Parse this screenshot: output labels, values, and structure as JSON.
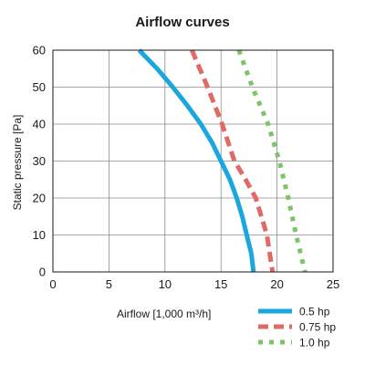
{
  "chart_data": {
    "type": "line",
    "title": "Airflow curves",
    "xlabel": "Airflow  [1,000 m³/h]",
    "ylabel": "Static pressure  [Pa]",
    "xlim": [
      0,
      25
    ],
    "ylim": [
      0,
      60
    ],
    "x_ticks": [
      "0",
      "5",
      "10",
      "15",
      "20",
      "25"
    ],
    "y_ticks": [
      "0",
      "10",
      "20",
      "30",
      "40",
      "50",
      "60"
    ],
    "grid": true,
    "legend_position": "bottom-right",
    "series": [
      {
        "name": "0.5 hp",
        "color": "#1aa6df",
        "style": "solid",
        "points": [
          [
            7.7,
            60
          ],
          [
            9.3,
            55
          ],
          [
            10.7,
            50
          ],
          [
            12.0,
            45
          ],
          [
            13.2,
            40
          ],
          [
            14.2,
            35
          ],
          [
            15.0,
            30
          ],
          [
            15.8,
            25
          ],
          [
            16.4,
            20
          ],
          [
            16.9,
            15
          ],
          [
            17.3,
            10
          ],
          [
            17.7,
            5
          ],
          [
            17.9,
            0
          ]
        ]
      },
      {
        "name": "0.75 hp",
        "color": "#e06a65",
        "style": "dashed",
        "points": [
          [
            12.4,
            60
          ],
          [
            13.8,
            50
          ],
          [
            15.1,
            40
          ],
          [
            16.2,
            30
          ],
          [
            17.2,
            25
          ],
          [
            18.1,
            20
          ],
          [
            19.1,
            10
          ],
          [
            19.6,
            0
          ]
        ]
      },
      {
        "name": "1.0 hp",
        "color": "#7cc36c",
        "style": "dotted",
        "points": [
          [
            16.6,
            60
          ],
          [
            17.8,
            50
          ],
          [
            19.2,
            40
          ],
          [
            20.2,
            30
          ],
          [
            21.0,
            20
          ],
          [
            21.7,
            10
          ],
          [
            22.5,
            0
          ]
        ]
      }
    ]
  }
}
